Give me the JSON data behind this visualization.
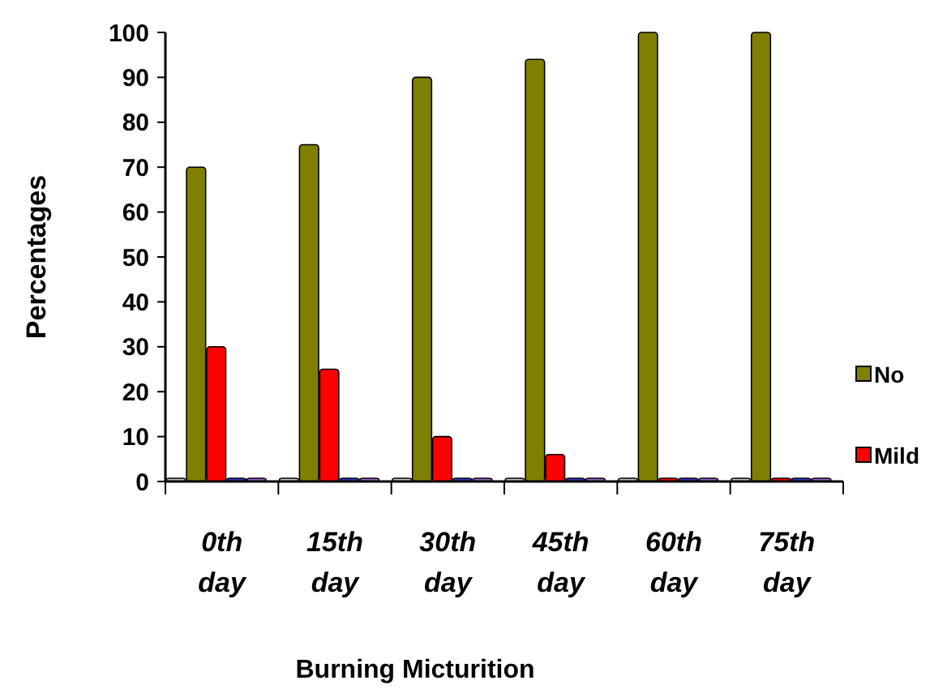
{
  "chart_data": {
    "type": "bar",
    "xlabel": "Burning Micturition",
    "ylabel": "Percentages",
    "categories": [
      "0th day",
      "15th day",
      "30th day",
      "45th day",
      "60th day",
      "75th day"
    ],
    "series": [
      {
        "color": "#c0c0c0",
        "values": [
          0,
          0,
          0,
          0,
          0,
          0
        ]
      },
      {
        "name": "No",
        "color": "#808000",
        "values": [
          70,
          75,
          90,
          94,
          100,
          100
        ]
      },
      {
        "name": "Mild",
        "color": "#ff0000",
        "values": [
          30,
          25,
          10,
          6,
          0,
          0
        ]
      },
      {
        "color": "#3333cc",
        "values": [
          0,
          0,
          0,
          0,
          0,
          0
        ]
      },
      {
        "color": "#9966cc",
        "values": [
          0,
          0,
          0,
          0,
          0,
          0
        ]
      }
    ],
    "ylim": [
      0,
      100
    ],
    "yticks": [
      0,
      10,
      20,
      30,
      40,
      50,
      60,
      70,
      80,
      90,
      100
    ],
    "grid": false,
    "legend": "right"
  }
}
